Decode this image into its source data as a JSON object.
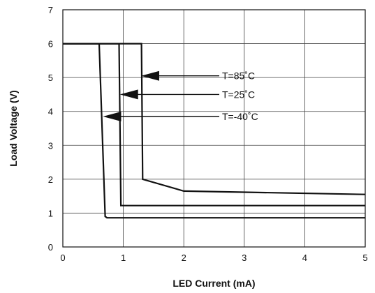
{
  "chart_data": {
    "type": "line",
    "xlabel": "LED Current (mA)",
    "ylabel": "Load Voltage (V)",
    "xlim": [
      0,
      5
    ],
    "ylim": [
      0,
      7
    ],
    "x_ticks": [
      "0",
      "1",
      "2",
      "3",
      "4",
      "5"
    ],
    "y_ticks": [
      "0",
      "1",
      "2",
      "3",
      "4",
      "5",
      "6",
      "7"
    ],
    "grid": true,
    "series": [
      {
        "name": "T=85˚C",
        "points": [
          [
            0,
            6
          ],
          [
            1.3,
            6
          ],
          [
            1.32,
            2.0
          ],
          [
            2.0,
            1.65
          ],
          [
            5.0,
            1.55
          ]
        ],
        "arrow_to": [
          1.27,
          5.05
        ]
      },
      {
        "name": "T=25˚C",
        "points": [
          [
            0,
            6
          ],
          [
            0.93,
            6
          ],
          [
            0.96,
            1.22
          ],
          [
            5.0,
            1.22
          ]
        ],
        "arrow_to": [
          0.92,
          4.5
        ]
      },
      {
        "name": "T=-40˚C",
        "points": [
          [
            0,
            6
          ],
          [
            0.6,
            6
          ],
          [
            0.7,
            0.9
          ],
          [
            0.73,
            0.86
          ],
          [
            5.0,
            0.86
          ]
        ],
        "arrow_to": [
          0.64,
          3.85
        ]
      }
    ]
  }
}
